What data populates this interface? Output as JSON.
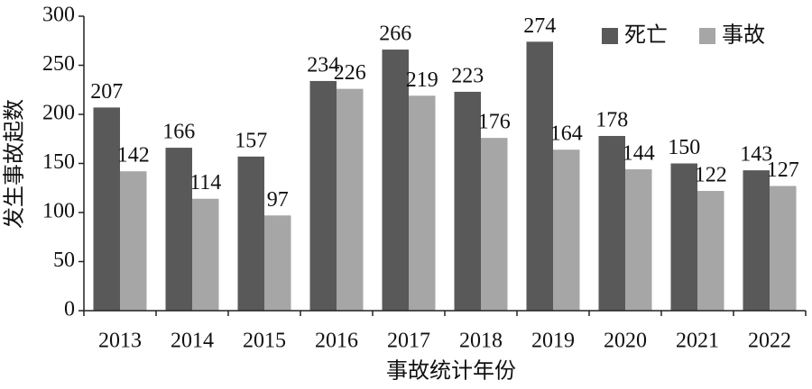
{
  "chart_data": {
    "type": "bar",
    "x_label": "事故统计年份",
    "y_label": "发生事故起数",
    "categories": [
      "2013",
      "2014",
      "2015",
      "2016",
      "2017",
      "2018",
      "2019",
      "2020",
      "2021",
      "2022"
    ],
    "series": [
      {
        "name": "死亡",
        "color": "#595959",
        "values": [
          207,
          166,
          157,
          234,
          266,
          223,
          274,
          178,
          150,
          143
        ]
      },
      {
        "name": "事故",
        "color": "#a6a6a6",
        "values": [
          142,
          114,
          97,
          226,
          219,
          176,
          164,
          144,
          122,
          127
        ]
      }
    ],
    "ylim": [
      0,
      300
    ],
    "yticks": [
      0,
      50,
      100,
      150,
      200,
      250,
      300
    ],
    "grid": false,
    "legend": "upper right"
  }
}
